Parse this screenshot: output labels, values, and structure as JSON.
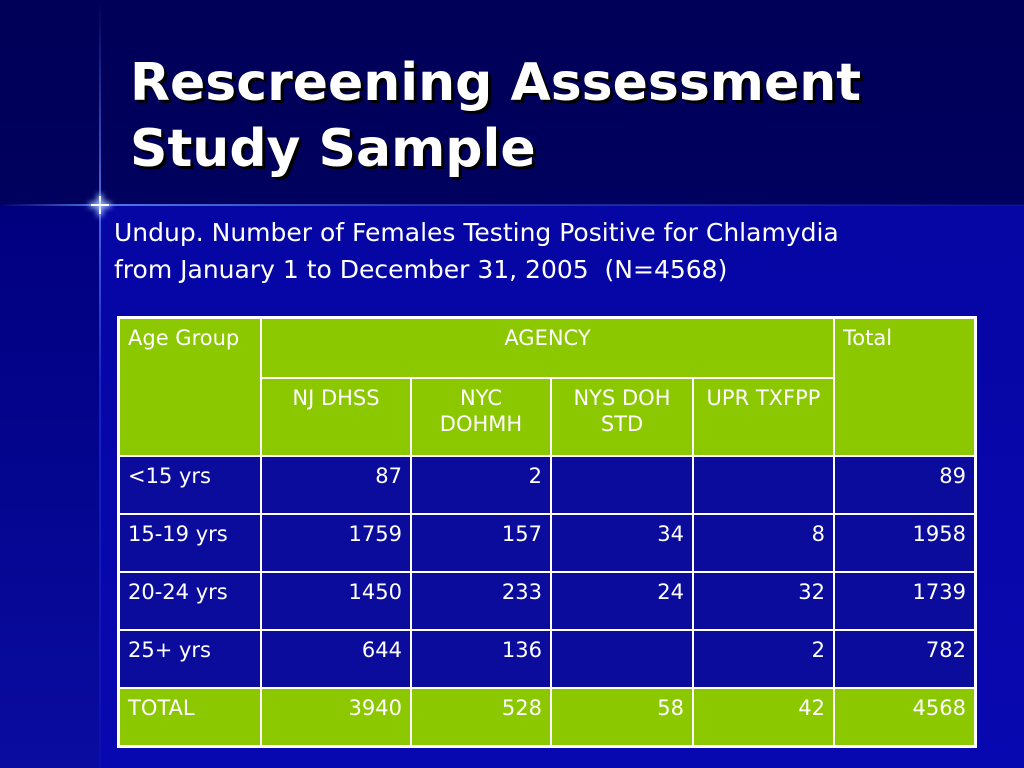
{
  "title": "Rescreening Assessment Study Sample",
  "subtitle": "Undup. Number of Females Testing Positive for Chlamydia\nfrom January 1 to December 31, 2005  (N=4568)",
  "table": {
    "header": {
      "age_group": "Age Group",
      "agency": "AGENCY",
      "total": "Total",
      "columns": [
        "NJ DHSS",
        "NYC DOHMH",
        "NYS DOH STD",
        "UPR TXFPP"
      ]
    },
    "rows": [
      {
        "label": "<15 yrs",
        "values": [
          "87",
          "2",
          "",
          ""
        ],
        "total": "89"
      },
      {
        "label": "15-19 yrs",
        "values": [
          "1759",
          "157",
          "34",
          "8"
        ],
        "total": "1958"
      },
      {
        "label": "20-24 yrs",
        "values": [
          "1450",
          "233",
          "24",
          "32"
        ],
        "total": "1739"
      },
      {
        "label": "25+ yrs",
        "values": [
          "644",
          "136",
          "",
          "2"
        ],
        "total": "782"
      }
    ],
    "total_row": {
      "label": "TOTAL",
      "values": [
        "3940",
        "528",
        "58",
        "42"
      ],
      "total": "4568"
    }
  },
  "colors": {
    "background": "#000080",
    "header_green": "#8cc800",
    "body_blue": "#0c0c9c",
    "text": "#ffffff"
  }
}
